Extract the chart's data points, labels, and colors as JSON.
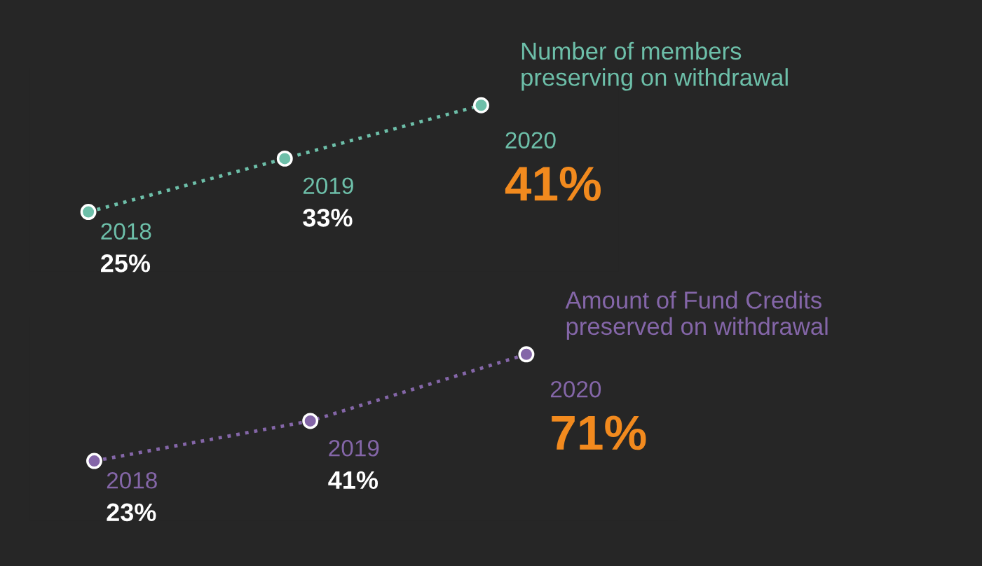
{
  "chart_data": [
    {
      "type": "line",
      "categories": [
        "2018",
        "2019",
        "2020"
      ],
      "tick_labels": false,
      "marker": "circle",
      "line_style": "dotted",
      "legend": false,
      "series": [
        {
          "name": "Number of members\npreserving on withdrawal",
          "color": "#6dbfa9",
          "values": [
            25,
            33,
            41
          ],
          "value_labels": [
            "25%",
            "33%",
            "41%"
          ]
        }
      ]
    },
    {
      "type": "line",
      "categories": [
        "2018",
        "2019",
        "2020"
      ],
      "tick_labels": false,
      "marker": "circle",
      "line_style": "dotted",
      "legend": false,
      "series": [
        {
          "name": "Amount of Fund Credits\npreserved on withdrawal",
          "color": "#8466a8",
          "values": [
            23,
            41,
            71
          ],
          "value_labels": [
            "23%",
            "41%",
            "71%"
          ]
        }
      ]
    }
  ]
}
